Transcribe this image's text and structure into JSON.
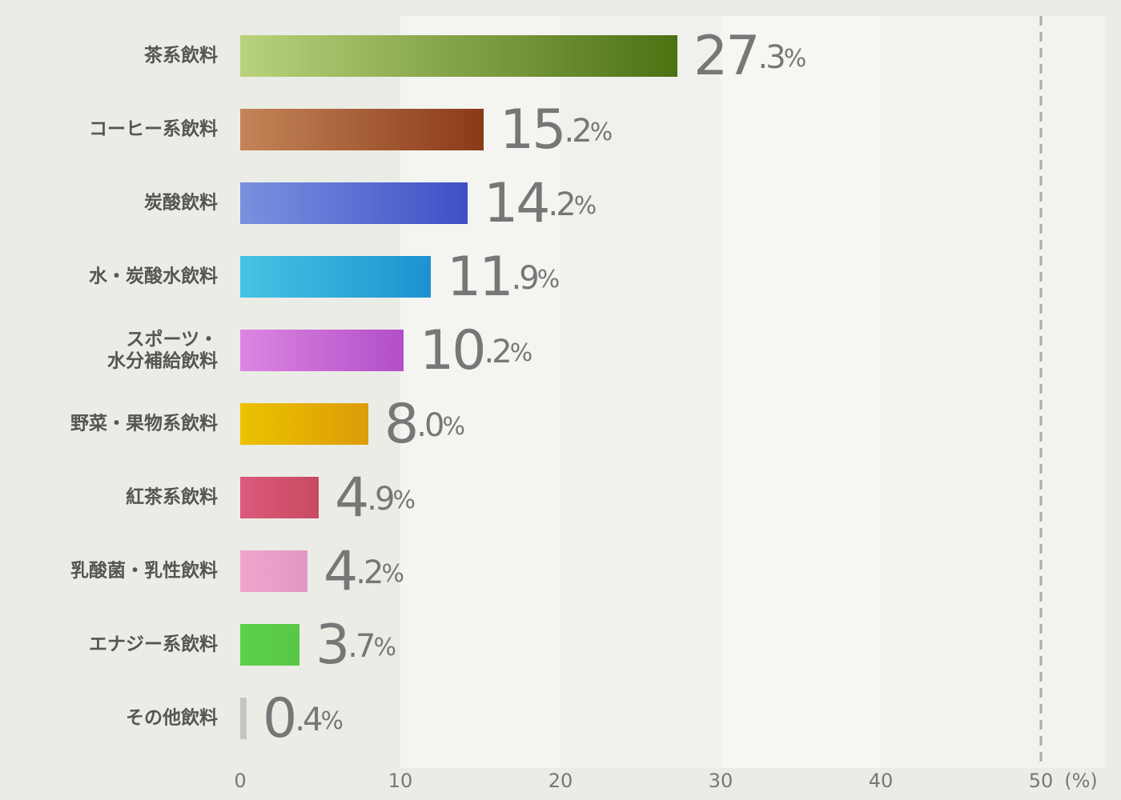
{
  "chart_data": {
    "type": "bar",
    "orientation": "horizontal",
    "categories": [
      "茶系飲料",
      "コーヒー系飲料",
      "炭酸飲料",
      "水・炭酸水飲料",
      "スポーツ・\n水分補給飲料",
      "野菜・果物系飲料",
      "紅茶系飲料",
      "乳酸菌・乳性飲料",
      "エナジー系飲料",
      "その他飲料"
    ],
    "values": [
      27.3,
      15.2,
      14.2,
      11.9,
      10.2,
      8.0,
      4.9,
      4.2,
      3.7,
      0.4
    ],
    "value_labels": [
      "27.3%",
      "15.2%",
      "14.2%",
      "11.9%",
      "10.2%",
      "8.0%",
      "4.9%",
      "4.2%",
      "3.7%",
      "0.4%"
    ],
    "colors": [
      [
        "#b9d27c",
        "#4c7212"
      ],
      [
        "#c48458",
        "#8a3a16"
      ],
      [
        "#7b90e0",
        "#3d50c6"
      ],
      [
        "#45c4e4",
        "#1c92d0"
      ],
      [
        "#dc86e2",
        "#b24ec8"
      ],
      [
        "#ecc200",
        "#dc9c08"
      ],
      [
        "#dc5a7c",
        "#c84a60"
      ],
      [
        "#eea6cc",
        "#e496c4"
      ],
      [
        "#5cd04a",
        "#58c846"
      ],
      [
        "#c4c4c4",
        "#c4c4c4"
      ]
    ],
    "xlim": [
      0,
      50
    ],
    "xticks": [
      0,
      10,
      20,
      30,
      40,
      50
    ],
    "x_label": "(%)"
  }
}
